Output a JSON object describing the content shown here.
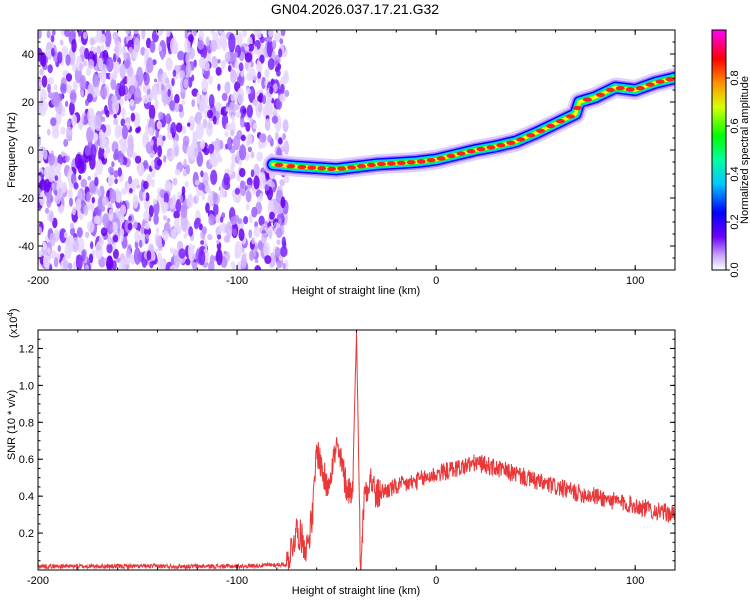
{
  "title": "GN04.2026.037.17.21.G32",
  "chart_data": [
    {
      "type": "heatmap",
      "name": "spectrogram",
      "xlabel": "Height of straight line (km)",
      "ylabel": "Frequency (Hz)",
      "xlim": [
        -200,
        120
      ],
      "ylim": [
        -50,
        50
      ],
      "xticks": [
        -200,
        -100,
        0,
        100
      ],
      "yticks": [
        -40,
        -20,
        0,
        20,
        40
      ],
      "noise_region_x": [
        -200,
        -75
      ],
      "ridge": {
        "x": [
          -82,
          -70,
          -60,
          -50,
          -40,
          -30,
          -20,
          -10,
          0,
          10,
          20,
          30,
          40,
          50,
          60,
          70,
          72,
          80,
          90,
          100,
          110,
          120
        ],
        "y": [
          -6,
          -7,
          -7.5,
          -8,
          -7,
          -6,
          -5.5,
          -5,
          -4,
          -2,
          0,
          1.5,
          3.5,
          7,
          11,
          15,
          20,
          22,
          26,
          25,
          28,
          30
        ]
      },
      "colorbar": {
        "label": "Normalized spectral amplitude",
        "ticks": [
          0.0,
          0.2,
          0.4,
          0.6,
          0.8
        ],
        "tick_labels": [
          "0.0",
          "0.2",
          "0.4",
          "0.6",
          "0.8"
        ],
        "colors": [
          "#ffffff",
          "#b070ff",
          "#6000ff",
          "#0000ff",
          "#00ffff",
          "#00ff00",
          "#ffff00",
          "#ff8000",
          "#ff0000",
          "#ff00ff"
        ]
      }
    },
    {
      "type": "line",
      "name": "snr",
      "xlabel": "Height of straight line (km)",
      "ylabel": "SNR (10 * v/v)",
      "y_multiplier_label": "(x10",
      "y_multiplier_exp": "4",
      "xlim": [
        -200,
        120
      ],
      "ylim": [
        0.0,
        1.3
      ],
      "xticks": [
        -200,
        -100,
        0,
        100
      ],
      "yticks": [
        0.2,
        0.4,
        0.6,
        0.8,
        1.0,
        1.2
      ],
      "series": [
        {
          "name": "SNR",
          "color": "#e8383a",
          "x": [
            -200,
            -150,
            -100,
            -75,
            -70,
            -65,
            -62,
            -60,
            -55,
            -52,
            -50,
            -47,
            -45,
            -42,
            -40,
            -38,
            -36,
            -33,
            -30,
            -28,
            -20,
            -10,
            0,
            10,
            20,
            25,
            30,
            40,
            50,
            60,
            70,
            80,
            90,
            100,
            110,
            120
          ],
          "y": [
            0.02,
            0.02,
            0.02,
            0.03,
            0.22,
            0.12,
            0.3,
            0.66,
            0.45,
            0.58,
            0.66,
            0.55,
            0.45,
            0.42,
            1.3,
            0.0,
            0.42,
            0.5,
            0.4,
            0.42,
            0.45,
            0.48,
            0.52,
            0.55,
            0.58,
            0.57,
            0.55,
            0.52,
            0.48,
            0.45,
            0.42,
            0.4,
            0.37,
            0.35,
            0.32,
            0.3
          ]
        }
      ]
    }
  ]
}
